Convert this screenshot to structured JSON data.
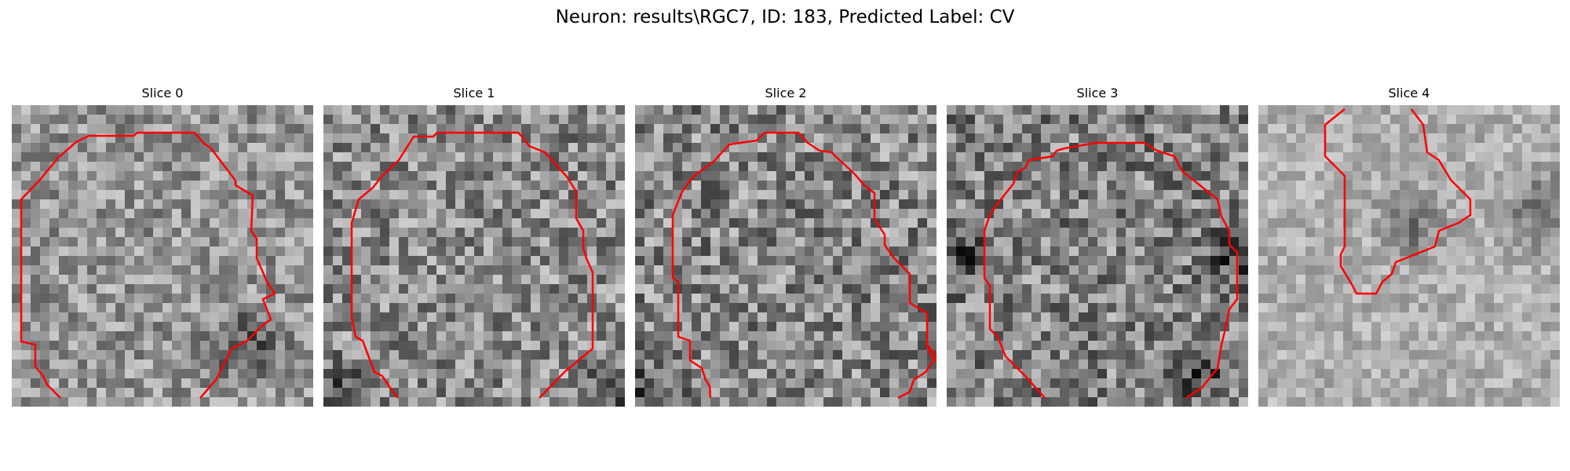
{
  "figure": {
    "title": "Neuron: results\\RGC7, ID: 183, Predicted Label: CV",
    "slices": [
      {
        "title": "Slice 0"
      },
      {
        "title": "Slice 1"
      },
      {
        "title": "Slice 2"
      },
      {
        "title": "Slice 3"
      },
      {
        "title": "Slice 4"
      }
    ]
  },
  "colors": {
    "contour": "#ff0000",
    "background": "#ffffff"
  }
}
